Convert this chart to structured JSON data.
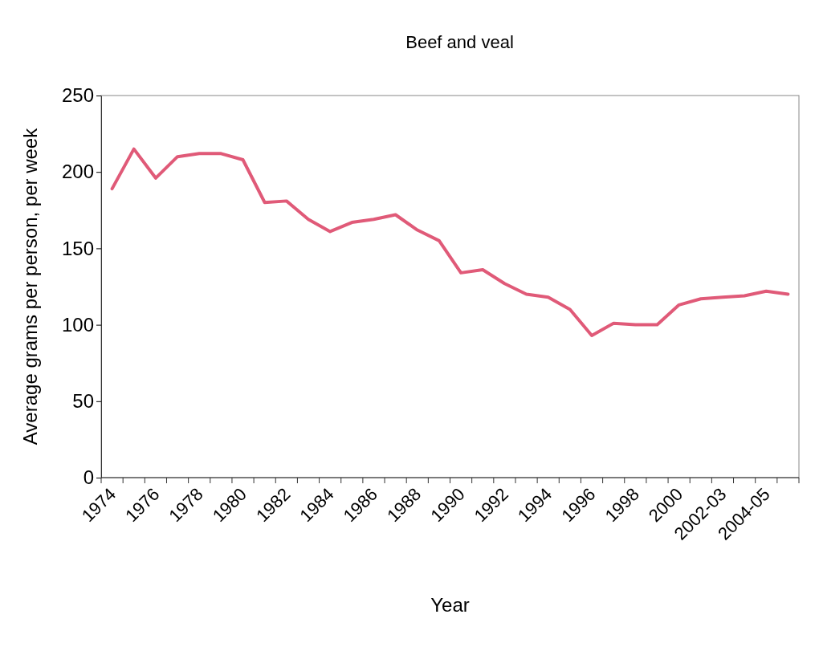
{
  "chart_data": {
    "type": "line",
    "title": "Beef and veal",
    "xlabel": "Year",
    "ylabel": "Average grams per person, per week",
    "categories": [
      "1974",
      null,
      "1976",
      null,
      "1978",
      null,
      "1980",
      null,
      "1982",
      null,
      "1984",
      null,
      "1986",
      null,
      "1988",
      null,
      "1990",
      null,
      "1992",
      null,
      "1994",
      null,
      "1996",
      null,
      "1998",
      null,
      "2000",
      null,
      "2002-03",
      null,
      "2004-05",
      null
    ],
    "series": [
      {
        "color": "#e05a78",
        "values": [
          189,
          215,
          196,
          210,
          212,
          212,
          208,
          180,
          181,
          169,
          161,
          167,
          169,
          172,
          162,
          155,
          134,
          136,
          127,
          120,
          118,
          110,
          93,
          101,
          100,
          100,
          113,
          117,
          118,
          119,
          122,
          120
        ]
      }
    ],
    "ylim": [
      0,
      250
    ],
    "yticks": [
      0,
      50,
      100,
      150,
      200,
      250
    ],
    "grid": false,
    "marker": "none",
    "line_style": "solid"
  }
}
